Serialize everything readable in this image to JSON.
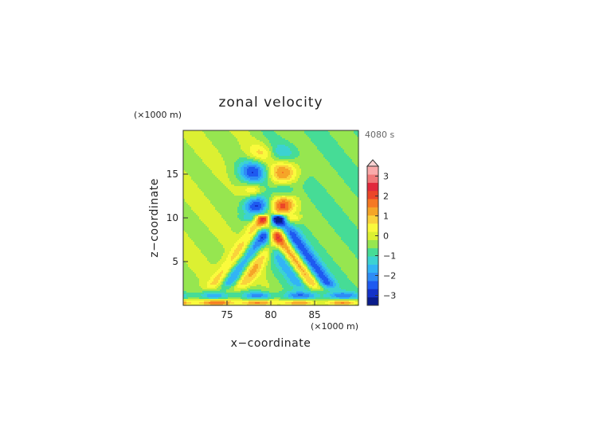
{
  "chart_data": {
    "type": "heatmap",
    "title": "zonal velocity",
    "time_label": "4080 s",
    "xlabel": "x−coordinate",
    "ylabel": "z−coordinate",
    "x_unit_label": "(×1000 m)",
    "y_unit_label": "(×1000 m)",
    "xlim": [
      70,
      90
    ],
    "ylim": [
      0,
      20
    ],
    "x_ticks": [
      75,
      80,
      85
    ],
    "y_ticks": [
      5,
      10,
      15
    ],
    "x_tick_labels": [
      "75",
      "80",
      "85"
    ],
    "y_tick_labels": [
      "5",
      "10",
      "15"
    ],
    "colorbar": {
      "vmin": -3.5,
      "vmax": 3.5,
      "step": 0.5,
      "ticks": [
        -3,
        -2,
        -1,
        0,
        1,
        2,
        3
      ],
      "tick_labels": [
        "−3",
        "−2",
        "−1",
        "0",
        "1",
        "2",
        "3"
      ],
      "colors": [
        "#0a1c8c",
        "#1432c8",
        "#1e5af0",
        "#2e8cf5",
        "#32b4f5",
        "#3cd2d2",
        "#46dc96",
        "#96e650",
        "#dcf032",
        "#fafa3c",
        "#fad23c",
        "#f5a528",
        "#f57823",
        "#eb4628",
        "#e1283c",
        "#f07878",
        "#faaaaa"
      ],
      "extend": "max"
    },
    "field": {
      "description_values_in_m_per_s": true,
      "background": 0.25,
      "features": [
        {
          "x": 78.0,
          "z": 15.3,
          "amp": -2.7,
          "sx": 1.2,
          "sz": 1.0
        },
        {
          "x": 81.5,
          "z": 15.3,
          "amp": 2.4,
          "sx": 1.2,
          "sz": 1.0
        },
        {
          "x": 78.3,
          "z": 11.3,
          "amp": -3.2,
          "sx": 1.0,
          "sz": 0.9
        },
        {
          "x": 81.3,
          "z": 11.3,
          "amp": 3.4,
          "sx": 1.0,
          "sz": 0.9
        },
        {
          "x": 78.5,
          "z": 9.3,
          "amp": 2.0,
          "sx": 0.8,
          "sz": 0.8
        },
        {
          "x": 81.0,
          "z": 9.3,
          "amp": -1.8,
          "sx": 0.8,
          "sz": 0.8
        },
        {
          "x": 78.0,
          "z": 13.2,
          "amp": 1.6,
          "sx": 0.8,
          "sz": 0.6
        },
        {
          "x": 81.5,
          "z": 13.2,
          "amp": -1.4,
          "sx": 0.8,
          "sz": 0.6
        },
        {
          "x": 79.0,
          "z": 17.3,
          "amp": 1.5,
          "sx": 1.2,
          "sz": 0.8
        },
        {
          "x": 81.0,
          "z": 17.3,
          "amp": -1.2,
          "sx": 1.2,
          "sz": 0.8
        }
      ],
      "bands": [
        {
          "x0": 79.0,
          "z0": 10.5,
          "slope_dx_dz": -0.72,
          "amp": 2.4,
          "width": 0.8,
          "z_from": 2.5,
          "z_to": 10.0,
          "offset": 0.0
        },
        {
          "x0": 79.0,
          "z0": 10.5,
          "slope_dx_dz": -0.72,
          "amp": -2.6,
          "width": 0.8,
          "z_from": 2.5,
          "z_to": 10.0,
          "offset": 1.5
        },
        {
          "x0": 79.0,
          "z0": 10.5,
          "slope_dx_dz": -0.72,
          "amp": -1.6,
          "width": 0.7,
          "z_from": 2.5,
          "z_to": 10.0,
          "offset": -1.5
        },
        {
          "x0": 81.0,
          "z0": 10.5,
          "slope_dx_dz": 0.72,
          "amp": -2.2,
          "width": 0.8,
          "z_from": 2.5,
          "z_to": 10.0,
          "offset": 0.0
        },
        {
          "x0": 81.0,
          "z0": 10.5,
          "slope_dx_dz": 0.72,
          "amp": 1.9,
          "width": 0.8,
          "z_from": 2.5,
          "z_to": 10.0,
          "offset": -1.5
        },
        {
          "x0": 81.0,
          "z0": 10.5,
          "slope_dx_dz": 0.72,
          "amp": 1.4,
          "width": 0.7,
          "z_from": 2.5,
          "z_to": 10.0,
          "offset": 1.5
        }
      ],
      "near_surface": [
        {
          "z": 1.1,
          "amp": -1.6,
          "sz": 0.35
        },
        {
          "z": 0.3,
          "amp": 2.2,
          "sz": 0.25
        }
      ]
    }
  }
}
